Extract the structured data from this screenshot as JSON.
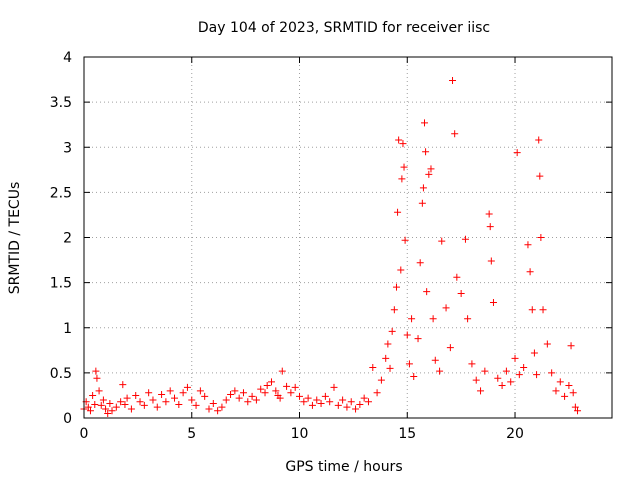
{
  "chart_data": {
    "type": "scatter",
    "title": "Day 104 of 2023, SRMTID for receiver iisc",
    "xlabel": "GPS time / hours",
    "ylabel": "SRMTID / TECUs",
    "xlim": [
      0,
      24.5
    ],
    "ylim": [
      0,
      4
    ],
    "x_ticks": [
      0,
      5,
      10,
      15,
      20
    ],
    "x_tick_labels": [
      "0",
      "5",
      "10",
      "15",
      "20"
    ],
    "y_ticks": [
      0,
      0.5,
      1,
      1.5,
      2,
      2.5,
      3,
      3.5,
      4
    ],
    "y_tick_labels": [
      "0",
      "0.5",
      "1",
      "1.5",
      "2",
      "2.5",
      "3",
      "3.5",
      "4"
    ],
    "grid": true,
    "marker": "+",
    "color": "#ff0000",
    "series": [
      {
        "name": "SRMTID",
        "points": [
          [
            0.0,
            0.1
          ],
          [
            0.1,
            0.18
          ],
          [
            0.2,
            0.12
          ],
          [
            0.3,
            0.08
          ],
          [
            0.4,
            0.25
          ],
          [
            0.5,
            0.15
          ],
          [
            0.55,
            0.52
          ],
          [
            0.6,
            0.44
          ],
          [
            0.7,
            0.3
          ],
          [
            0.8,
            0.14
          ],
          [
            0.9,
            0.2
          ],
          [
            1.0,
            0.1
          ],
          [
            1.1,
            0.05
          ],
          [
            1.2,
            0.16
          ],
          [
            1.3,
            0.08
          ],
          [
            1.5,
            0.12
          ],
          [
            1.7,
            0.18
          ],
          [
            1.8,
            0.37
          ],
          [
            1.9,
            0.15
          ],
          [
            2.0,
            0.22
          ],
          [
            2.2,
            0.1
          ],
          [
            2.4,
            0.25
          ],
          [
            2.6,
            0.18
          ],
          [
            2.8,
            0.14
          ],
          [
            3.0,
            0.28
          ],
          [
            3.2,
            0.2
          ],
          [
            3.4,
            0.12
          ],
          [
            3.6,
            0.26
          ],
          [
            3.8,
            0.18
          ],
          [
            4.0,
            0.3
          ],
          [
            4.2,
            0.22
          ],
          [
            4.4,
            0.15
          ],
          [
            4.6,
            0.28
          ],
          [
            4.8,
            0.34
          ],
          [
            5.0,
            0.2
          ],
          [
            5.2,
            0.14
          ],
          [
            5.4,
            0.3
          ],
          [
            5.6,
            0.24
          ],
          [
            5.8,
            0.1
          ],
          [
            6.0,
            0.16
          ],
          [
            6.2,
            0.08
          ],
          [
            6.4,
            0.12
          ],
          [
            6.6,
            0.2
          ],
          [
            6.8,
            0.26
          ],
          [
            7.0,
            0.3
          ],
          [
            7.2,
            0.22
          ],
          [
            7.4,
            0.28
          ],
          [
            7.6,
            0.18
          ],
          [
            7.8,
            0.24
          ],
          [
            8.0,
            0.2
          ],
          [
            8.2,
            0.32
          ],
          [
            8.4,
            0.28
          ],
          [
            8.5,
            0.36
          ],
          [
            8.7,
            0.4
          ],
          [
            8.9,
            0.3
          ],
          [
            9.0,
            0.25
          ],
          [
            9.1,
            0.22
          ],
          [
            9.2,
            0.52
          ],
          [
            9.4,
            0.35
          ],
          [
            9.6,
            0.28
          ],
          [
            9.8,
            0.34
          ],
          [
            10.0,
            0.24
          ],
          [
            10.2,
            0.18
          ],
          [
            10.4,
            0.22
          ],
          [
            10.6,
            0.14
          ],
          [
            10.8,
            0.2
          ],
          [
            11.0,
            0.16
          ],
          [
            11.2,
            0.24
          ],
          [
            11.4,
            0.18
          ],
          [
            11.6,
            0.34
          ],
          [
            11.8,
            0.14
          ],
          [
            12.0,
            0.2
          ],
          [
            12.2,
            0.12
          ],
          [
            12.4,
            0.18
          ],
          [
            12.6,
            0.1
          ],
          [
            12.8,
            0.15
          ],
          [
            13.0,
            0.22
          ],
          [
            13.2,
            0.18
          ],
          [
            13.4,
            0.56
          ],
          [
            13.6,
            0.28
          ],
          [
            13.8,
            0.42
          ],
          [
            14.0,
            0.66
          ],
          [
            14.1,
            0.82
          ],
          [
            14.2,
            0.55
          ],
          [
            14.3,
            0.96
          ],
          [
            14.4,
            1.2
          ],
          [
            14.5,
            1.45
          ],
          [
            14.55,
            2.28
          ],
          [
            14.6,
            3.08
          ],
          [
            14.7,
            1.64
          ],
          [
            14.75,
            2.65
          ],
          [
            14.8,
            3.04
          ],
          [
            14.85,
            2.78
          ],
          [
            14.9,
            1.97
          ],
          [
            15.0,
            0.92
          ],
          [
            15.1,
            0.6
          ],
          [
            15.2,
            1.1
          ],
          [
            15.3,
            0.46
          ],
          [
            15.5,
            0.88
          ],
          [
            15.6,
            1.72
          ],
          [
            15.7,
            2.38
          ],
          [
            15.75,
            2.55
          ],
          [
            15.8,
            3.27
          ],
          [
            15.85,
            2.95
          ],
          [
            15.9,
            1.4
          ],
          [
            16.0,
            2.7
          ],
          [
            16.1,
            2.76
          ],
          [
            16.2,
            1.1
          ],
          [
            16.3,
            0.64
          ],
          [
            16.5,
            0.52
          ],
          [
            16.6,
            1.96
          ],
          [
            16.8,
            1.22
          ],
          [
            17.0,
            0.78
          ],
          [
            17.1,
            3.74
          ],
          [
            17.2,
            3.15
          ],
          [
            17.3,
            1.56
          ],
          [
            17.5,
            1.38
          ],
          [
            17.7,
            1.98
          ],
          [
            17.8,
            1.1
          ],
          [
            18.0,
            0.6
          ],
          [
            18.2,
            0.42
          ],
          [
            18.4,
            0.3
          ],
          [
            18.6,
            0.52
          ],
          [
            18.8,
            2.26
          ],
          [
            18.85,
            2.12
          ],
          [
            18.9,
            1.74
          ],
          [
            19.0,
            1.28
          ],
          [
            19.2,
            0.44
          ],
          [
            19.4,
            0.36
          ],
          [
            19.6,
            0.52
          ],
          [
            19.8,
            0.4
          ],
          [
            20.0,
            0.66
          ],
          [
            20.1,
            2.94
          ],
          [
            20.2,
            0.48
          ],
          [
            20.4,
            0.56
          ],
          [
            20.6,
            1.92
          ],
          [
            20.7,
            1.62
          ],
          [
            20.8,
            1.2
          ],
          [
            20.9,
            0.72
          ],
          [
            21.0,
            0.48
          ],
          [
            21.1,
            3.08
          ],
          [
            21.15,
            2.68
          ],
          [
            21.2,
            2.0
          ],
          [
            21.3,
            1.2
          ],
          [
            21.5,
            0.82
          ],
          [
            21.7,
            0.5
          ],
          [
            21.9,
            0.3
          ],
          [
            22.1,
            0.4
          ],
          [
            22.3,
            0.24
          ],
          [
            22.5,
            0.36
          ],
          [
            22.6,
            0.8
          ],
          [
            22.7,
            0.28
          ],
          [
            22.8,
            0.12
          ],
          [
            22.9,
            0.08
          ]
        ]
      }
    ]
  }
}
